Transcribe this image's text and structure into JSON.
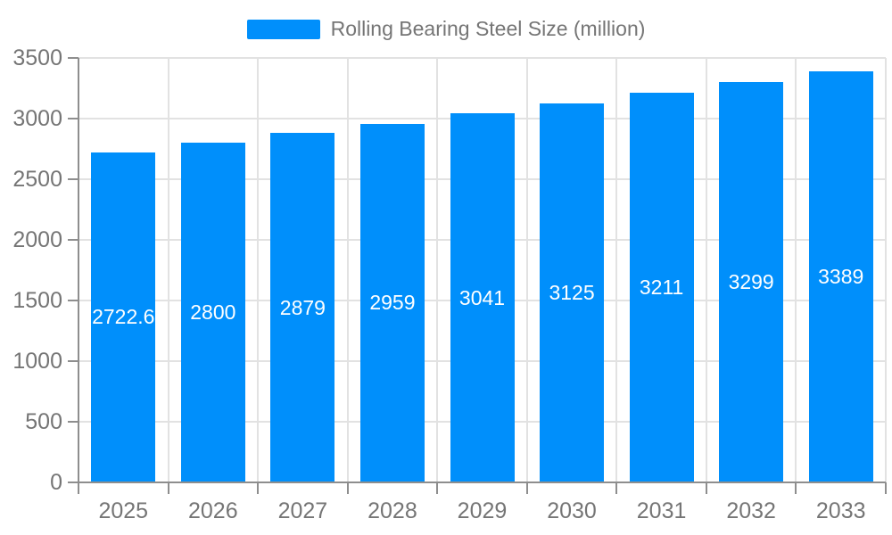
{
  "chart_data": {
    "type": "bar",
    "title": "Rolling Bearing Steel Size (million)",
    "legend": [
      {
        "label": "Rolling Bearing Steel Size (million)",
        "color": "#008FFB"
      }
    ],
    "legend_position": "top-center",
    "categories": [
      "2025",
      "2026",
      "2027",
      "2028",
      "2029",
      "2030",
      "2031",
      "2032",
      "2033"
    ],
    "series": [
      {
        "name": "Rolling Bearing Steel Size (million)",
        "values": [
          2722.6,
          2800,
          2879,
          2959,
          3041,
          3125,
          3211,
          3299,
          3389
        ],
        "data_labels": [
          "2722.6",
          "2800",
          "2879",
          "2959",
          "3041",
          "3125",
          "3211",
          "3299",
          "3389"
        ]
      }
    ],
    "xlabel": "",
    "ylabel": "",
    "ylim": [
      0,
      3500
    ],
    "ytick_step": 500,
    "ytick_labels": [
      "0",
      "500",
      "1000",
      "1500",
      "2000",
      "2500",
      "3000",
      "3500"
    ],
    "grid": true,
    "data_label_position": "middle-of-bar",
    "colors": {
      "bar": "#008FFB",
      "axis_text": "#757575",
      "data_label_text": "#ffffff",
      "gridline": "#e2e2e2",
      "axis_line": "#8e8e8e"
    }
  }
}
